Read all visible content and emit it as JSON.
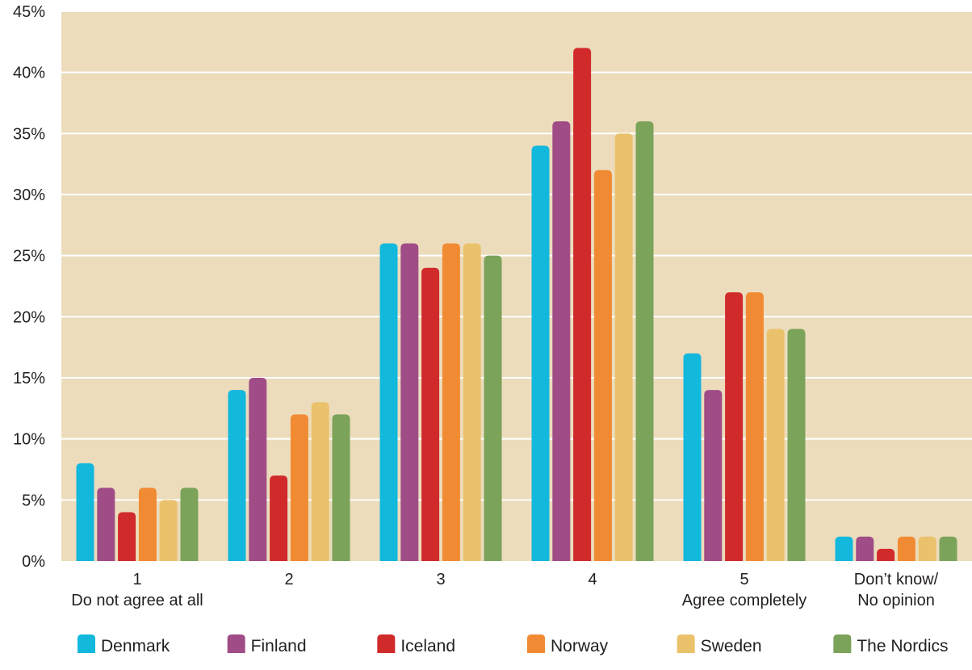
{
  "chart_data": {
    "type": "bar",
    "title": "",
    "xlabel": "",
    "ylabel": "",
    "ylim": [
      0,
      45
    ],
    "y_ticks": [
      0,
      5,
      10,
      15,
      20,
      25,
      30,
      35,
      40,
      45
    ],
    "y_tick_suffix": "%",
    "grid": true,
    "legend_position": "bottom",
    "plot_background": "#ecdcbc",
    "grid_color": "#ffffff",
    "categories": [
      [
        "1",
        "Do not agree at all"
      ],
      [
        "2"
      ],
      [
        "3"
      ],
      [
        "4"
      ],
      [
        "5",
        "Agree completely"
      ],
      [
        "Don’t know/",
        "No opinion"
      ]
    ],
    "series": [
      {
        "name": "Denmark",
        "color": "#13b8dd",
        "values": [
          8,
          14,
          26,
          34,
          17,
          2
        ]
      },
      {
        "name": "Finland",
        "color": "#a04c86",
        "values": [
          6,
          15,
          26,
          36,
          14,
          2
        ]
      },
      {
        "name": "Iceland",
        "color": "#d12a2b",
        "values": [
          4,
          7,
          24,
          42,
          22,
          1
        ]
      },
      {
        "name": "Norway",
        "color": "#f18b33",
        "values": [
          6,
          12,
          26,
          32,
          22,
          2
        ]
      },
      {
        "name": "Sweden",
        "color": "#ebc26c",
        "values": [
          5,
          13,
          26,
          35,
          19,
          2
        ]
      },
      {
        "name": "The Nordics",
        "color": "#7ba35a",
        "values": [
          6,
          12,
          25,
          36,
          19,
          2
        ]
      }
    ]
  }
}
